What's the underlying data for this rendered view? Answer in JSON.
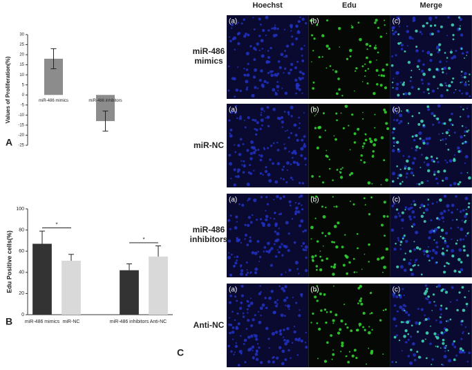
{
  "chart_data": [
    {
      "type": "bar",
      "ylabel": "Values of Proliferation(%)",
      "categories": [
        "miR-486 mimics",
        "miR-486 inhibitors"
      ],
      "values": [
        18,
        -13
      ],
      "errors": [
        5,
        5
      ],
      "colors": [
        "#8c8c8c",
        "#8c8c8c"
      ],
      "ylim": [
        -25,
        30
      ],
      "yticks": [
        -25,
        -20,
        -15,
        -10,
        -5,
        0,
        5,
        10,
        15,
        20,
        25,
        30
      ]
    },
    {
      "type": "bar",
      "ylabel": "Edu Positive cells(%)",
      "categories": [
        "miR-486 mimics",
        "miR-NC",
        null,
        "miR-486 inhibitors",
        "Anti-NC"
      ],
      "values": [
        67,
        51,
        null,
        42,
        55
      ],
      "errors": [
        12,
        6,
        null,
        6,
        10
      ],
      "colors": [
        "#333333",
        "#d9d9d9",
        null,
        "#333333",
        "#d9d9d9"
      ],
      "ylim": [
        0,
        100
      ],
      "yticks": [
        0,
        20,
        40,
        60,
        80,
        100
      ],
      "significance": [
        {
          "label": "*",
          "pair": [
            0,
            1
          ],
          "y": 82
        },
        {
          "label": "*",
          "pair": [
            3,
            4
          ],
          "y": 68
        }
      ]
    }
  ],
  "panel_labels": [
    "A",
    "B",
    "C"
  ],
  "microscopy": {
    "columns": [
      "Hoechst",
      "Edu",
      "Merge"
    ],
    "rows": [
      "miR-486 mimics",
      "miR-NC",
      "miR-486 inhibitors",
      "Anti-NC"
    ],
    "subpanel_labels": [
      "(a)",
      "(b)",
      "(c)"
    ]
  }
}
